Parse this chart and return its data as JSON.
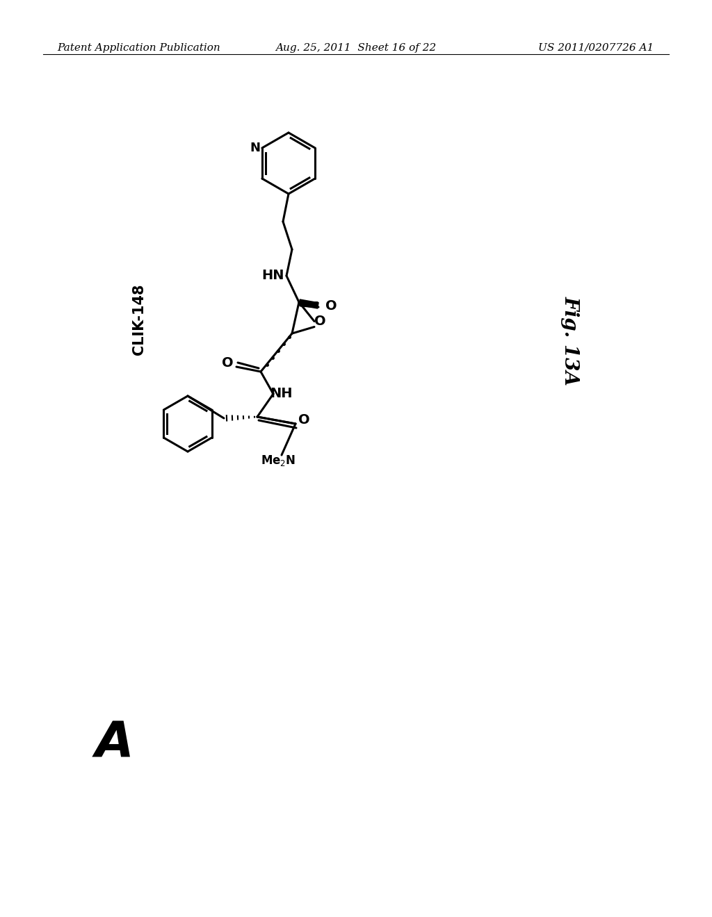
{
  "background_color": "#ffffff",
  "page_header_left": "Patent Application Publication",
  "page_header_center": "Aug. 25, 2011  Sheet 16 of 22",
  "page_header_right": "US 2011/0207726 A1",
  "label_clik": "CLIK-148",
  "label_fig": "Fig. 13A",
  "label_A": "A",
  "header_fontsize": 11,
  "fig_label_fontsize": 18,
  "A_fontsize": 52,
  "lw": 2.2
}
